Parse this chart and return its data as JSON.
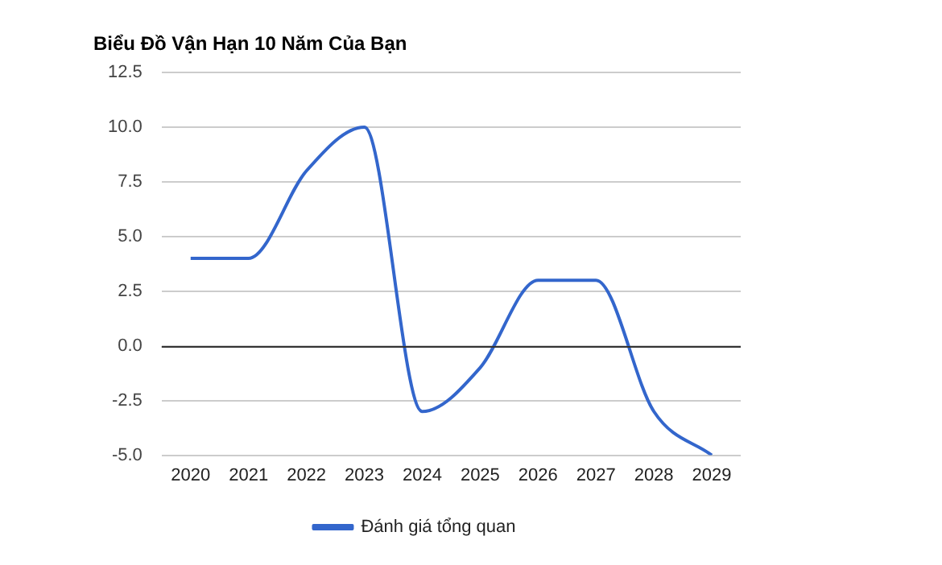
{
  "chart_data": {
    "type": "line",
    "title": "Biểu Đồ Vận Hạn 10 Năm Của Bạn",
    "categories": [
      "2020",
      "2021",
      "2022",
      "2023",
      "2024",
      "2025",
      "2026",
      "2027",
      "2028",
      "2029"
    ],
    "series": [
      {
        "name": "Đánh giá tổng quan",
        "color": "#3366cc",
        "values": [
          4,
          4,
          8,
          10,
          -3,
          -1,
          3,
          3,
          -3,
          -5
        ]
      }
    ],
    "ylim": [
      -5,
      12.5
    ],
    "yticks": [
      {
        "value": -5,
        "label": "-5.0"
      },
      {
        "value": -2.5,
        "label": "-2.5"
      },
      {
        "value": 0,
        "label": "0.0"
      },
      {
        "value": 2.5,
        "label": "2.5"
      },
      {
        "value": 5,
        "label": "5.0"
      },
      {
        "value": 7.5,
        "label": "7.5"
      },
      {
        "value": 10,
        "label": "10.0"
      },
      {
        "value": 12.5,
        "label": "12.5"
      }
    ],
    "grid": "y",
    "legend": "bottom",
    "marker": "none",
    "line_style": "solid"
  }
}
